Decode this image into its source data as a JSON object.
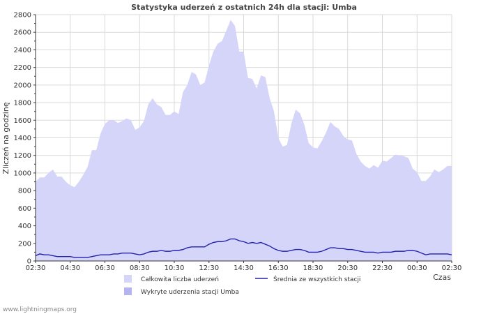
{
  "chart_data": {
    "type": "area",
    "title": "Statystyka uderzeń z ostatnich 24h dla stacji: Umba",
    "ylabel": "Zliczeń na godzinę",
    "xlabel": "Czas",
    "ylim": [
      0,
      2800
    ],
    "yticks": [
      0,
      200,
      400,
      600,
      800,
      1000,
      1200,
      1400,
      1600,
      1800,
      2000,
      2200,
      2400,
      2600,
      2800
    ],
    "xtick_labels": [
      "02:30",
      "04:30",
      "06:30",
      "08:30",
      "10:30",
      "12:30",
      "14:30",
      "16:30",
      "18:30",
      "20:30",
      "22:30",
      "00:30",
      "02:30"
    ],
    "x_hours": [
      0,
      0.25,
      0.5,
      0.75,
      1,
      1.25,
      1.5,
      1.75,
      2,
      2.25,
      2.5,
      2.75,
      3,
      3.25,
      3.5,
      3.75,
      4,
      4.25,
      4.5,
      4.75,
      5,
      5.25,
      5.5,
      5.75,
      6,
      6.25,
      6.5,
      6.75,
      7,
      7.25,
      7.5,
      7.75,
      8,
      8.25,
      8.5,
      8.75,
      9,
      9.25,
      9.5,
      9.75,
      10,
      10.25,
      10.5,
      10.75,
      11,
      11.25,
      11.5,
      11.75,
      12,
      12.25,
      12.5,
      12.75,
      13,
      13.25,
      13.5,
      13.75,
      14,
      14.25,
      14.5,
      14.75,
      15,
      15.25,
      15.5,
      15.75,
      16,
      16.25,
      16.5,
      16.75,
      17,
      17.25,
      17.5,
      17.75,
      18,
      18.25,
      18.5,
      18.75,
      19,
      19.25,
      19.5,
      19.75,
      20,
      20.25,
      20.5,
      20.75,
      21,
      21.25,
      21.5,
      21.75,
      22,
      22.25,
      22.5,
      22.75,
      23,
      23.25,
      23.5,
      23.75,
      24
    ],
    "series": [
      {
        "name": "Całkowita liczba uderzeń",
        "color": "#d5d5fa",
        "values": [
          900,
          950,
          950,
          1000,
          1040,
          960,
          960,
          900,
          860,
          840,
          900,
          980,
          1070,
          1260,
          1260,
          1450,
          1560,
          1600,
          1600,
          1570,
          1590,
          1620,
          1600,
          1490,
          1520,
          1590,
          1780,
          1850,
          1780,
          1750,
          1660,
          1660,
          1700,
          1670,
          1920,
          2000,
          2150,
          2120,
          2000,
          2030,
          2220,
          2380,
          2470,
          2500,
          2620,
          2740,
          2670,
          2380,
          2380,
          2080,
          2070,
          1960,
          2110,
          2090,
          1850,
          1700,
          1400,
          1300,
          1320,
          1560,
          1720,
          1680,
          1550,
          1340,
          1290,
          1280,
          1360,
          1460,
          1580,
          1530,
          1500,
          1420,
          1380,
          1370,
          1220,
          1130,
          1080,
          1050,
          1090,
          1060,
          1140,
          1130,
          1170,
          1210,
          1200,
          1190,
          1170,
          1050,
          1010,
          910,
          910,
          960,
          1040,
          1010,
          1040,
          1080,
          1080
        ]
      },
      {
        "name": "Wykryte uderzenia stacji Umba",
        "color": "#b4b4f0",
        "values": []
      },
      {
        "name": "Średnia ze wszystkich stacji",
        "color": "#2222aa",
        "values": [
          60,
          80,
          70,
          70,
          60,
          50,
          50,
          50,
          50,
          40,
          40,
          40,
          40,
          50,
          60,
          70,
          70,
          70,
          80,
          80,
          90,
          90,
          90,
          80,
          70,
          80,
          100,
          110,
          110,
          120,
          110,
          110,
          120,
          120,
          130,
          150,
          160,
          160,
          160,
          160,
          190,
          210,
          220,
          220,
          230,
          250,
          250,
          230,
          220,
          200,
          210,
          200,
          210,
          190,
          170,
          140,
          120,
          110,
          110,
          120,
          130,
          130,
          120,
          100,
          100,
          100,
          110,
          130,
          150,
          150,
          140,
          140,
          130,
          130,
          120,
          110,
          100,
          100,
          100,
          90,
          100,
          100,
          100,
          110,
          110,
          110,
          120,
          120,
          110,
          90,
          70,
          80,
          80,
          80,
          80,
          80,
          70
        ]
      }
    ],
    "grid": true
  },
  "credit": "www.lightningmaps.org"
}
